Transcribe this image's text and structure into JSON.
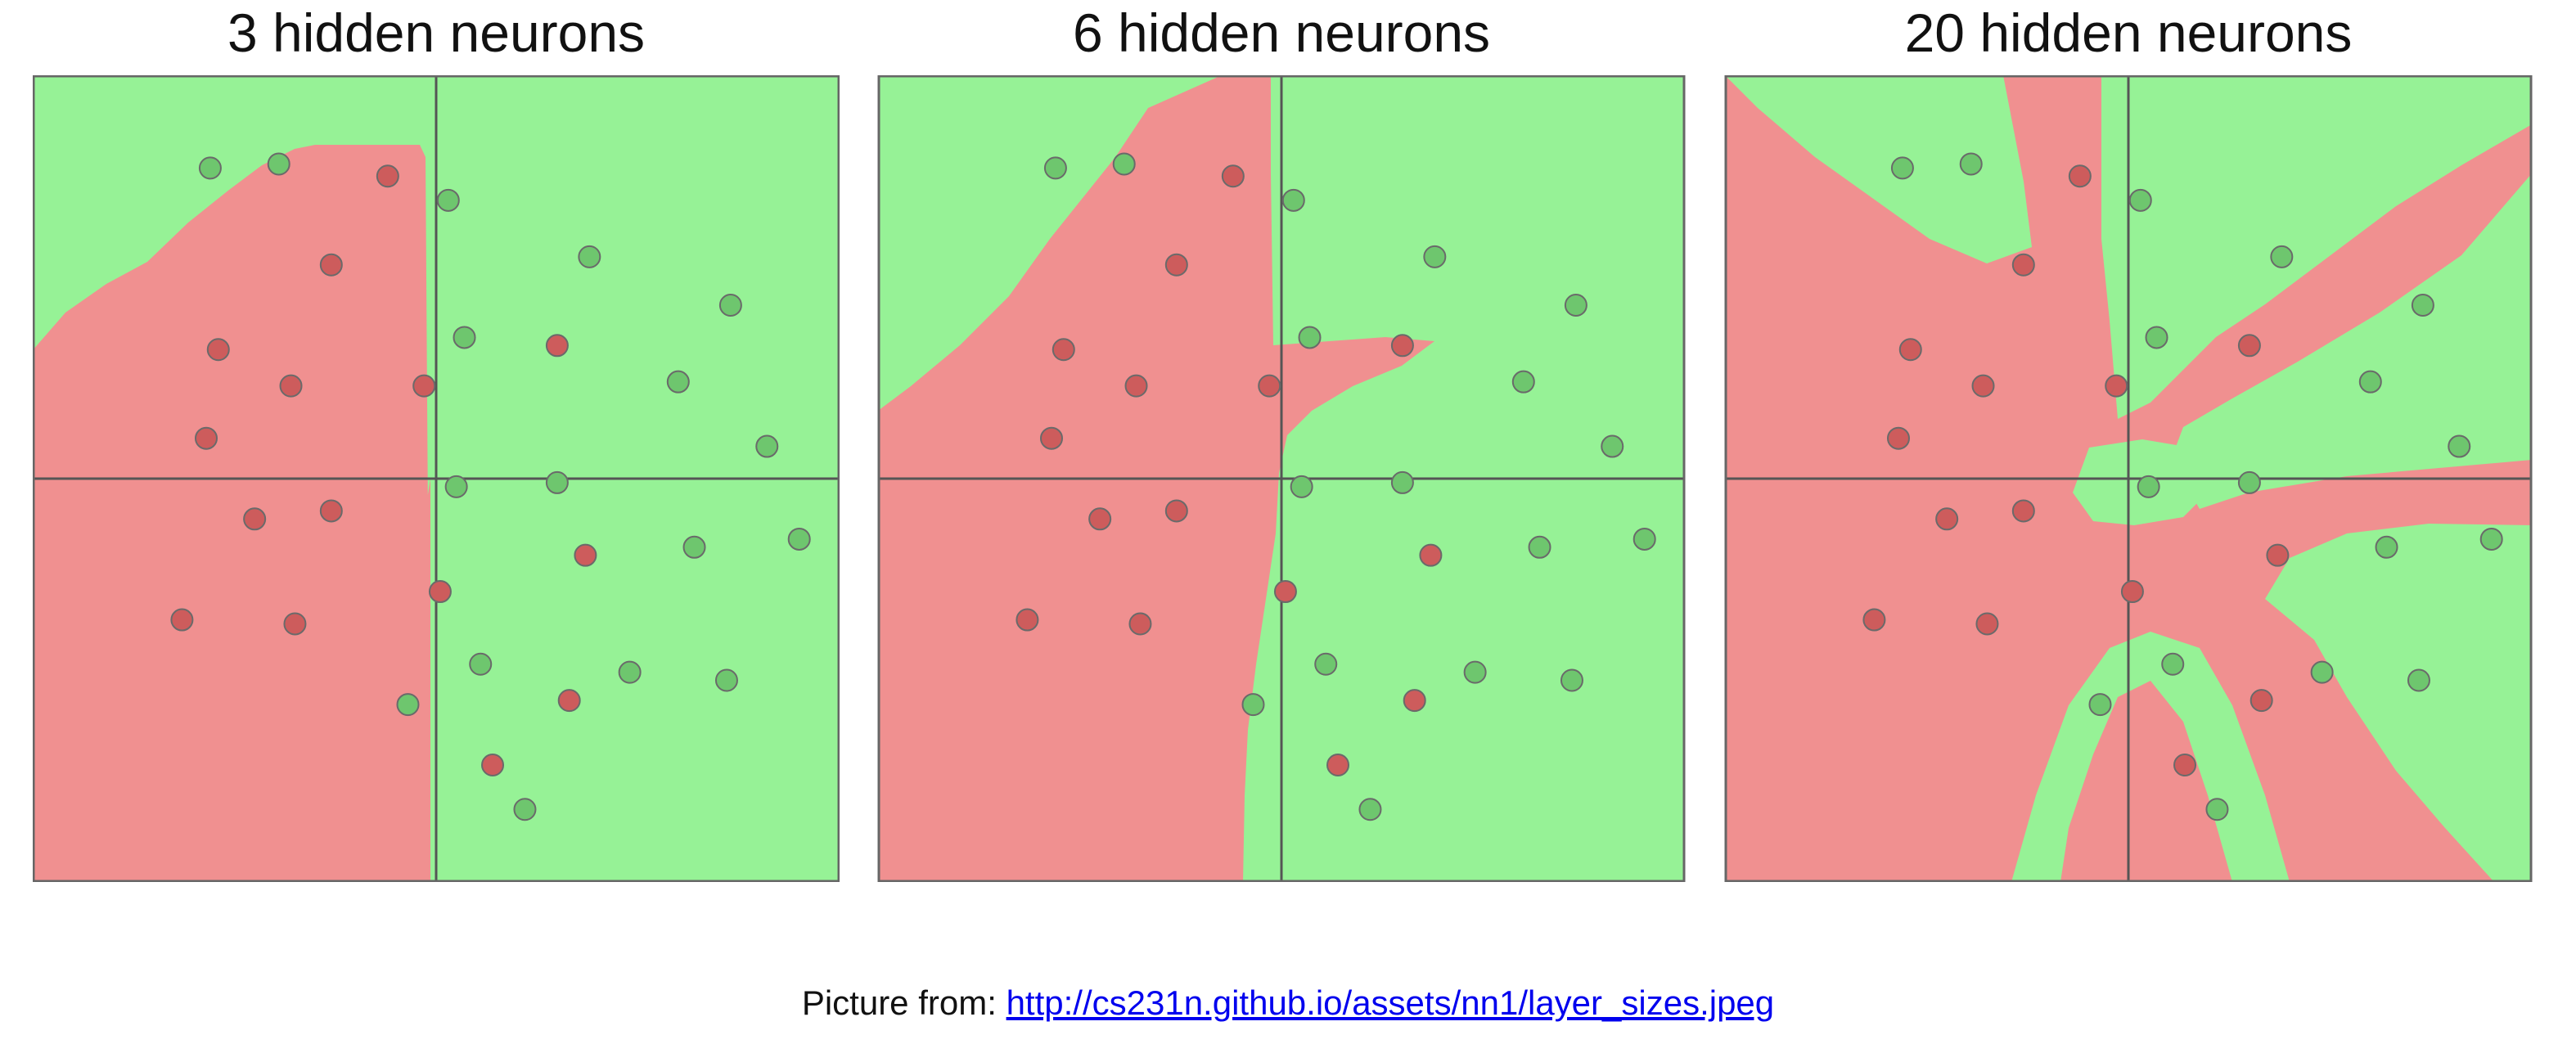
{
  "colors": {
    "class_red": "#f09090",
    "class_green": "#96f296",
    "point_red": "#cd5c5c",
    "point_green": "#6ec66e",
    "point_stroke": "#6a6a6a",
    "axes": "#555555",
    "frame": "#666666"
  },
  "chart_data": [
    {
      "type": "scatter",
      "title": "3 hidden neurons",
      "xlim": [
        -1,
        1
      ],
      "ylim": [
        -1,
        1
      ],
      "red_points": [
        [
          -0.12,
          0.75
        ],
        [
          -0.26,
          0.53
        ],
        [
          -0.54,
          0.32
        ],
        [
          -0.36,
          0.23
        ],
        [
          -0.57,
          0.1
        ],
        [
          -0.03,
          0.23
        ],
        [
          -0.45,
          -0.1
        ],
        [
          -0.26,
          -0.08
        ],
        [
          -0.63,
          -0.35
        ],
        [
          -0.35,
          -0.36
        ],
        [
          0.01,
          -0.28
        ],
        [
          0.3,
          0.33
        ],
        [
          0.37,
          -0.19
        ],
        [
          0.33,
          -0.55
        ],
        [
          0.14,
          -0.71
        ]
      ],
      "green_points": [
        [
          -0.56,
          0.77
        ],
        [
          -0.39,
          0.78
        ],
        [
          0.03,
          0.69
        ],
        [
          0.38,
          0.55
        ],
        [
          0.73,
          0.43
        ],
        [
          0.07,
          0.35
        ],
        [
          0.6,
          0.24
        ],
        [
          0.82,
          0.08
        ],
        [
          0.05,
          -0.02
        ],
        [
          0.3,
          -0.01
        ],
        [
          0.64,
          -0.17
        ],
        [
          0.9,
          -0.15
        ],
        [
          0.11,
          -0.46
        ],
        [
          0.48,
          -0.48
        ],
        [
          0.72,
          -0.5
        ],
        [
          -0.07,
          -0.56
        ],
        [
          0.22,
          -0.82
        ]
      ]
    },
    {
      "type": "scatter",
      "title": "6 hidden neurons",
      "xlim": [
        -1,
        1
      ],
      "ylim": [
        -1,
        1
      ],
      "red_points": [
        [
          -0.12,
          0.75
        ],
        [
          -0.26,
          0.53
        ],
        [
          -0.54,
          0.32
        ],
        [
          -0.36,
          0.23
        ],
        [
          -0.57,
          0.1
        ],
        [
          -0.03,
          0.23
        ],
        [
          -0.45,
          -0.1
        ],
        [
          -0.26,
          -0.08
        ],
        [
          -0.63,
          -0.35
        ],
        [
          -0.35,
          -0.36
        ],
        [
          0.01,
          -0.28
        ],
        [
          0.3,
          0.33
        ],
        [
          0.37,
          -0.19
        ],
        [
          0.33,
          -0.55
        ],
        [
          0.14,
          -0.71
        ]
      ],
      "green_points": [
        [
          -0.56,
          0.77
        ],
        [
          -0.39,
          0.78
        ],
        [
          0.03,
          0.69
        ],
        [
          0.38,
          0.55
        ],
        [
          0.73,
          0.43
        ],
        [
          0.07,
          0.35
        ],
        [
          0.6,
          0.24
        ],
        [
          0.82,
          0.08
        ],
        [
          0.05,
          -0.02
        ],
        [
          0.3,
          -0.01
        ],
        [
          0.64,
          -0.17
        ],
        [
          0.9,
          -0.15
        ],
        [
          0.11,
          -0.46
        ],
        [
          0.48,
          -0.48
        ],
        [
          0.72,
          -0.5
        ],
        [
          -0.07,
          -0.56
        ],
        [
          0.22,
          -0.82
        ]
      ]
    },
    {
      "type": "scatter",
      "title": "20 hidden neurons",
      "xlim": [
        -1,
        1
      ],
      "ylim": [
        -1,
        1
      ],
      "red_points": [
        [
          -0.12,
          0.75
        ],
        [
          -0.26,
          0.53
        ],
        [
          -0.54,
          0.32
        ],
        [
          -0.36,
          0.23
        ],
        [
          -0.57,
          0.1
        ],
        [
          -0.03,
          0.23
        ],
        [
          -0.45,
          -0.1
        ],
        [
          -0.26,
          -0.08
        ],
        [
          -0.63,
          -0.35
        ],
        [
          -0.35,
          -0.36
        ],
        [
          0.01,
          -0.28
        ],
        [
          0.3,
          0.33
        ],
        [
          0.37,
          -0.19
        ],
        [
          0.33,
          -0.55
        ],
        [
          0.14,
          -0.71
        ]
      ],
      "green_points": [
        [
          -0.56,
          0.77
        ],
        [
          -0.39,
          0.78
        ],
        [
          0.03,
          0.69
        ],
        [
          0.38,
          0.55
        ],
        [
          0.73,
          0.43
        ],
        [
          0.07,
          0.35
        ],
        [
          0.6,
          0.24
        ],
        [
          0.82,
          0.08
        ],
        [
          0.05,
          -0.02
        ],
        [
          0.3,
          -0.01
        ],
        [
          0.64,
          -0.17
        ],
        [
          0.9,
          -0.15
        ],
        [
          0.11,
          -0.46
        ],
        [
          0.48,
          -0.48
        ],
        [
          0.72,
          -0.5
        ],
        [
          -0.07,
          -0.56
        ],
        [
          0.22,
          -0.82
        ]
      ]
    }
  ],
  "caption": {
    "prefix": "Picture from: ",
    "link_text": "http://cs231n.github.io/assets/nn1/layer_sizes.jpeg"
  }
}
